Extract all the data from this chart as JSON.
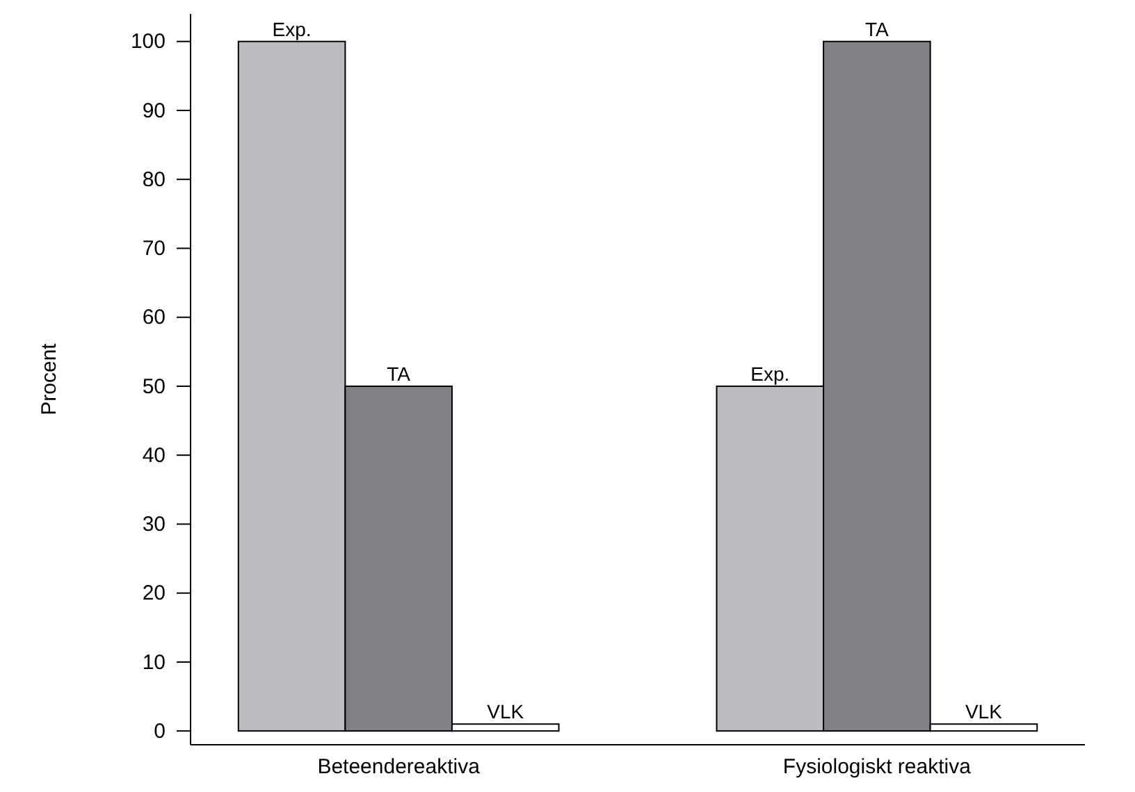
{
  "chart_data": {
    "type": "bar",
    "ylabel": "Procent",
    "categories": [
      "Beteendereaktiva",
      "Fysiologiskt reaktiva"
    ],
    "series": [
      {
        "name": "Exp.",
        "color": "#bcbcc0",
        "values": [
          100,
          50
        ]
      },
      {
        "name": "TA",
        "color": "#808085",
        "values": [
          50,
          100
        ]
      },
      {
        "name": "VLK",
        "color": "#ffffff",
        "values": [
          1,
          1
        ]
      }
    ],
    "ylim": [
      -2,
      104
    ],
    "yticks": [
      0,
      10,
      20,
      30,
      40,
      50,
      60,
      70,
      80,
      90,
      100
    ],
    "grid": false
  }
}
